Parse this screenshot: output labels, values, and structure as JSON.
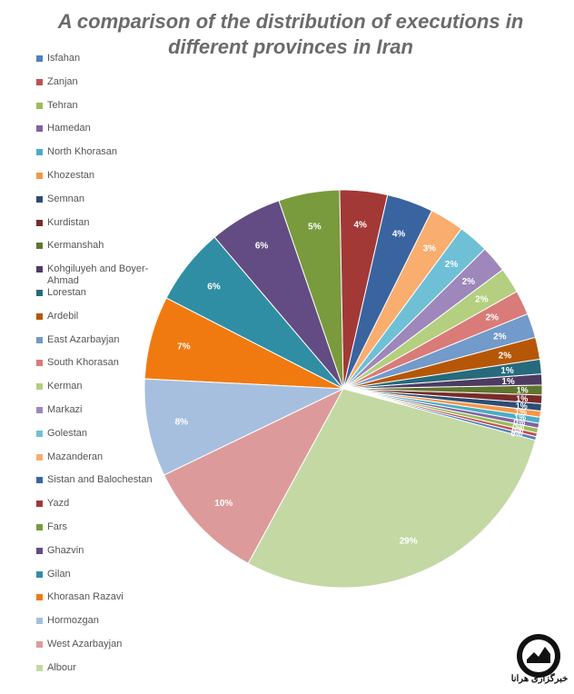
{
  "chart_data": {
    "type": "pie",
    "title": "A comparison of the distribution of executions in different provinces in Iran",
    "legend_position": "left",
    "slices": [
      {
        "name": "Isfahan",
        "value": 0.3,
        "label": "0%",
        "color": "#4f81bd"
      },
      {
        "name": "Zanjan",
        "value": 0.3,
        "label": "0%",
        "color": "#c0504d"
      },
      {
        "name": "Tehran",
        "value": 0.4,
        "label": "0%",
        "color": "#9bbb59"
      },
      {
        "name": "Hamedan",
        "value": 0.4,
        "label": "0%",
        "color": "#8064a2"
      },
      {
        "name": "North Khorasan",
        "value": 0.5,
        "label": "1%",
        "color": "#4bacc6"
      },
      {
        "name": "Khozestan",
        "value": 0.5,
        "label": "1%",
        "color": "#f79646"
      },
      {
        "name": "Semnan",
        "value": 0.6,
        "label": "1%",
        "color": "#2c4d75"
      },
      {
        "name": "Kurdistan",
        "value": 0.7,
        "label": "1%",
        "color": "#772c2a"
      },
      {
        "name": "Kermanshah",
        "value": 0.8,
        "label": "1%",
        "color": "#5f7530"
      },
      {
        "name": "Kohgiluyeh and Boyer-Ahmad",
        "value": 0.9,
        "label": "1%",
        "color": "#4d3b62"
      },
      {
        "name": "Lorestan",
        "value": 1.2,
        "label": "1%",
        "color": "#276a7c"
      },
      {
        "name": "Ardebil",
        "value": 1.8,
        "label": "2%",
        "color": "#b65708"
      },
      {
        "name": "East Azarbayjan",
        "value": 2.0,
        "label": "2%",
        "color": "#729aca"
      },
      {
        "name": "South Khorasan",
        "value": 2.0,
        "label": "2%",
        "color": "#d97b78"
      },
      {
        "name": "Kerman",
        "value": 2.1,
        "label": "2%",
        "color": "#b3cf7f"
      },
      {
        "name": "Markazi",
        "value": 2.2,
        "label": "2%",
        "color": "#9d87bb"
      },
      {
        "name": "Golestan",
        "value": 2.5,
        "label": "2%",
        "color": "#6fc0d6"
      },
      {
        "name": "Mazanderan",
        "value": 2.8,
        "label": "3%",
        "color": "#f9ad6f"
      },
      {
        "name": "Sistan and Balochestan",
        "value": 3.8,
        "label": "4%",
        "color": "#3a64a0"
      },
      {
        "name": "Yazd",
        "value": 3.9,
        "label": "4%",
        "color": "#a23936"
      },
      {
        "name": "Fars",
        "value": 5.0,
        "label": "5%",
        "color": "#7a9a3e"
      },
      {
        "name": "Ghazvin",
        "value": 6.0,
        "label": "6%",
        "color": "#634c83"
      },
      {
        "name": "Gilan",
        "value": 6.3,
        "label": "6%",
        "color": "#2f8ea4"
      },
      {
        "name": "Khorasan Razavi",
        "value": 6.8,
        "label": "7%",
        "color": "#f07a10"
      },
      {
        "name": "Hormozgan",
        "value": 8.0,
        "label": "8%",
        "color": "#a6bfdf"
      },
      {
        "name": "West Azarbayjan",
        "value": 10.0,
        "label": "10%",
        "color": "#dc9b9a"
      },
      {
        "name": "Albour",
        "value": 29.0,
        "label": "29%",
        "color": "#c4d8a4"
      }
    ]
  },
  "logo": {
    "text": "خبرگزاری هرانا"
  }
}
